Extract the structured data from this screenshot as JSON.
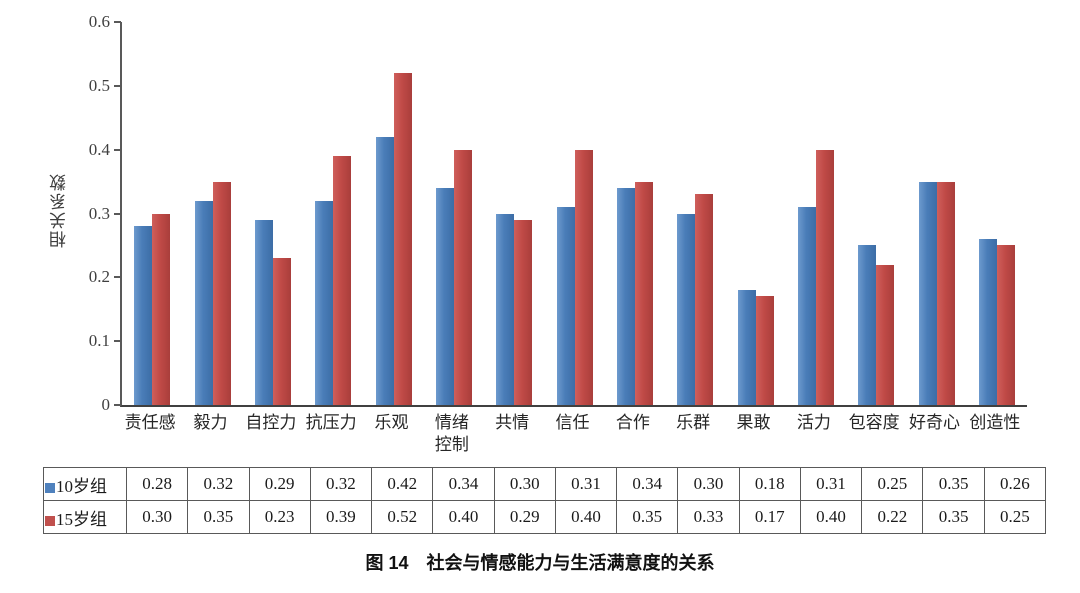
{
  "caption": "图 14　社会与情感能力与生活满意度的关系",
  "chart_data": {
    "type": "bar",
    "title": "图 14　社会与情感能力与生活满意度的关系",
    "xlabel": "",
    "ylabel": "相关系数",
    "ylim": [
      0,
      0.6
    ],
    "ytick_step": 0.1,
    "ytick_labels": [
      "0",
      "0.1",
      "0.2",
      "0.3",
      "0.4",
      "0.5",
      "0.6"
    ],
    "grid": "off",
    "legend_position": "table-left",
    "categories": [
      "责任感",
      "毅力",
      "自控力",
      "抗压力",
      "乐观",
      "情绪\n控制",
      "共情",
      "信任",
      "合作",
      "乐群",
      "果敢",
      "活力",
      "包容度",
      "好奇心",
      "创造性"
    ],
    "series": [
      {
        "name": "10岁组",
        "color": "#4F81BD",
        "values": [
          0.28,
          0.32,
          0.29,
          0.32,
          0.42,
          0.34,
          0.3,
          0.31,
          0.34,
          0.3,
          0.18,
          0.31,
          0.25,
          0.35,
          0.26
        ]
      },
      {
        "name": "15岁组",
        "color": "#C0504D",
        "values": [
          0.3,
          0.35,
          0.23,
          0.39,
          0.52,
          0.4,
          0.29,
          0.4,
          0.35,
          0.33,
          0.17,
          0.4,
          0.22,
          0.35,
          0.25
        ]
      }
    ]
  }
}
